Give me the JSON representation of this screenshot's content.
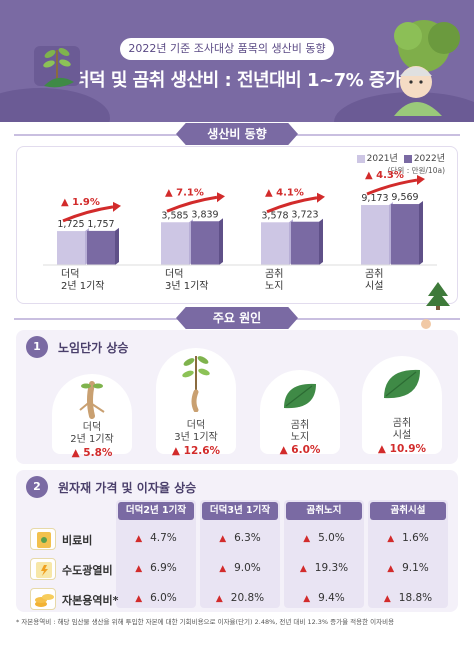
{
  "header": {
    "subtitle": "2022년 기준 조사대상 품목의 생산비 동향",
    "title": "더덕 및 곰취 생산비 : 전년대비 1~7% 증가"
  },
  "section1": {
    "banner": "생산비 동향",
    "legend": [
      "2021년",
      "2022년"
    ],
    "unit": "(단위 : 만원/10a)"
  },
  "colors": {
    "primary": "#7a6aa3",
    "bar2021": "#cdc6e4",
    "bar2022": "#7a6aa3",
    "increase": "#d22b2b"
  },
  "chart_data": {
    "type": "bar",
    "categories": [
      "더덕\n2년 1기작",
      "더덕\n3년 1기작",
      "곰취\n노지",
      "곰취\n시설"
    ],
    "series": [
      {
        "name": "2021년",
        "values": [
          1725,
          3585,
          3578,
          9173
        ]
      },
      {
        "name": "2022년",
        "values": [
          1757,
          3839,
          3723,
          9569
        ]
      }
    ],
    "value_labels": [
      [
        "1,725",
        "1,757"
      ],
      [
        "3,585",
        "3,839"
      ],
      [
        "3,578",
        "3,723"
      ],
      [
        "9,173",
        "9,569"
      ]
    ],
    "change_labels": [
      "1.9%",
      "7.1%",
      "4.1%",
      "4.3%"
    ],
    "legend_position": "top-right"
  },
  "section2": {
    "banner": "주요 원인",
    "cause1": {
      "number": "1",
      "title": "노임단가 상승",
      "items": [
        {
          "line1": "더덕",
          "line2": "2년 1기작",
          "pct": "5.8%",
          "icon": "deodeok-root-icon"
        },
        {
          "line1": "더덕",
          "line2": "3년 1기작",
          "pct": "12.6%",
          "icon": "deodeok-plant-icon"
        },
        {
          "line1": "곰취",
          "line2": "노지",
          "pct": "6.0%",
          "icon": "gomchwi-leaf-icon"
        },
        {
          "line1": "곰취",
          "line2": "시설",
          "pct": "10.9%",
          "icon": "gomchwi-leaf-icon"
        }
      ]
    },
    "cause2": {
      "number": "2",
      "title": "원자재 가격 및 이자율 상승",
      "columns": [
        "더덕2년 1기작",
        "더덕3년 1기작",
        "곰취노지",
        "곰취시설"
      ],
      "rows": [
        {
          "label": "비료비",
          "values": [
            "4.7%",
            "6.3%",
            "5.0%",
            "1.6%"
          ],
          "icon": "fertilizer-icon"
        },
        {
          "label": "수도광열비",
          "values": [
            "6.9%",
            "9.0%",
            "19.3%",
            "9.1%"
          ],
          "icon": "utilities-icon"
        },
        {
          "label": "자본용역비*",
          "values": [
            "6.0%",
            "20.8%",
            "9.4%",
            "18.8%"
          ],
          "icon": "coins-icon"
        }
      ]
    }
  },
  "footnote": "* 자본용역비 : 해당 임산물 생산을 위해 투입한 자본에 대한 기회비용으로 이자율(단기) 2.48%, 전년 대비 12.3% 증가율 적용한 이자비용",
  "arrow_glyph": "▲"
}
